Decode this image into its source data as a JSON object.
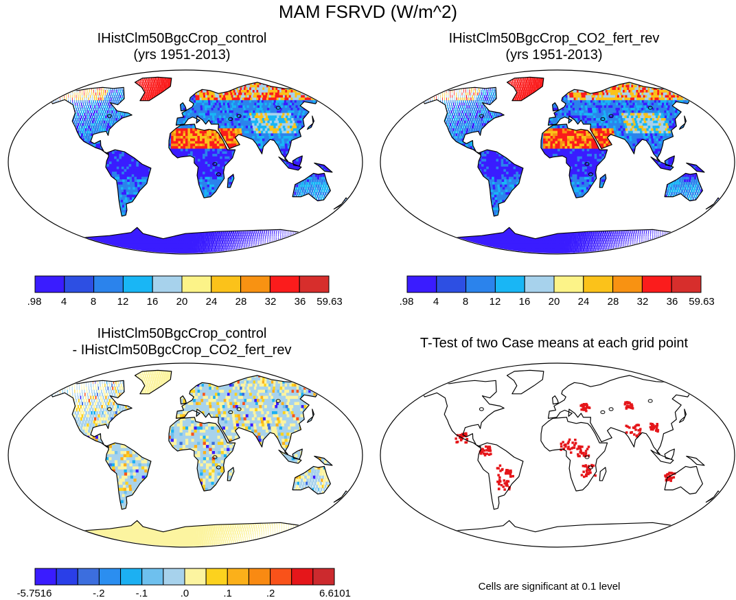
{
  "figure_title": "MAM FSRVD (W/m^2)",
  "panels": {
    "control": {
      "title_line1": "IHistClm50BgcCrop_control",
      "title_line2": "(yrs 1951-2013)"
    },
    "co2": {
      "title_line1": "IHistClm50BgcCrop_CO2_fert_rev",
      "title_line2": "(yrs 1951-2013)"
    },
    "diff": {
      "title_line1": "IHistClm50BgcCrop_control",
      "title_line2": "- IHistClm50BgcCrop_CO2_fert_rev"
    },
    "ttest": {
      "title_line1": "T-Test of two Case means at each grid point",
      "note": "Cells are significant at 0.1 level"
    }
  },
  "colorbars": {
    "absolute": {
      "colors": [
        "#3a1cff",
        "#2d4fe3",
        "#2b83ec",
        "#19b6f5",
        "#a7d2ec",
        "#fcf388",
        "#fbc21a",
        "#f89212",
        "#fb1c1c",
        "#d72e2c"
      ],
      "labels": [
        ".98",
        "4",
        "8",
        "12",
        "16",
        "20",
        "24",
        "28",
        "32",
        "36",
        "59.63"
      ]
    },
    "difference": {
      "colors": [
        "#3a1cff",
        "#2a3fe8",
        "#3c6ede",
        "#2b8ef0",
        "#1cb0f2",
        "#6ec0ee",
        "#a7d2ec",
        "#fcf4a0",
        "#fcd21e",
        "#fbb01a",
        "#f98a12",
        "#f9521a",
        "#e5161a",
        "#cc2a2e"
      ],
      "labels": [
        "-5.7516",
        "-.2",
        "-.1",
        ".0",
        ".1",
        ".2",
        "6.6101"
      ]
    }
  },
  "map_colors": {
    "land_cold": "#2b83ec",
    "land_deep": "#3a1cff",
    "land_mid": "#19b6f5",
    "land_light": "#a7d2ec",
    "land_warm": "#fbc21a",
    "land_hot": "#fb1c1c",
    "diff_base": "#a7d2ec",
    "diff_pale": "#fcf4a0",
    "signif": "#e5161a"
  }
}
